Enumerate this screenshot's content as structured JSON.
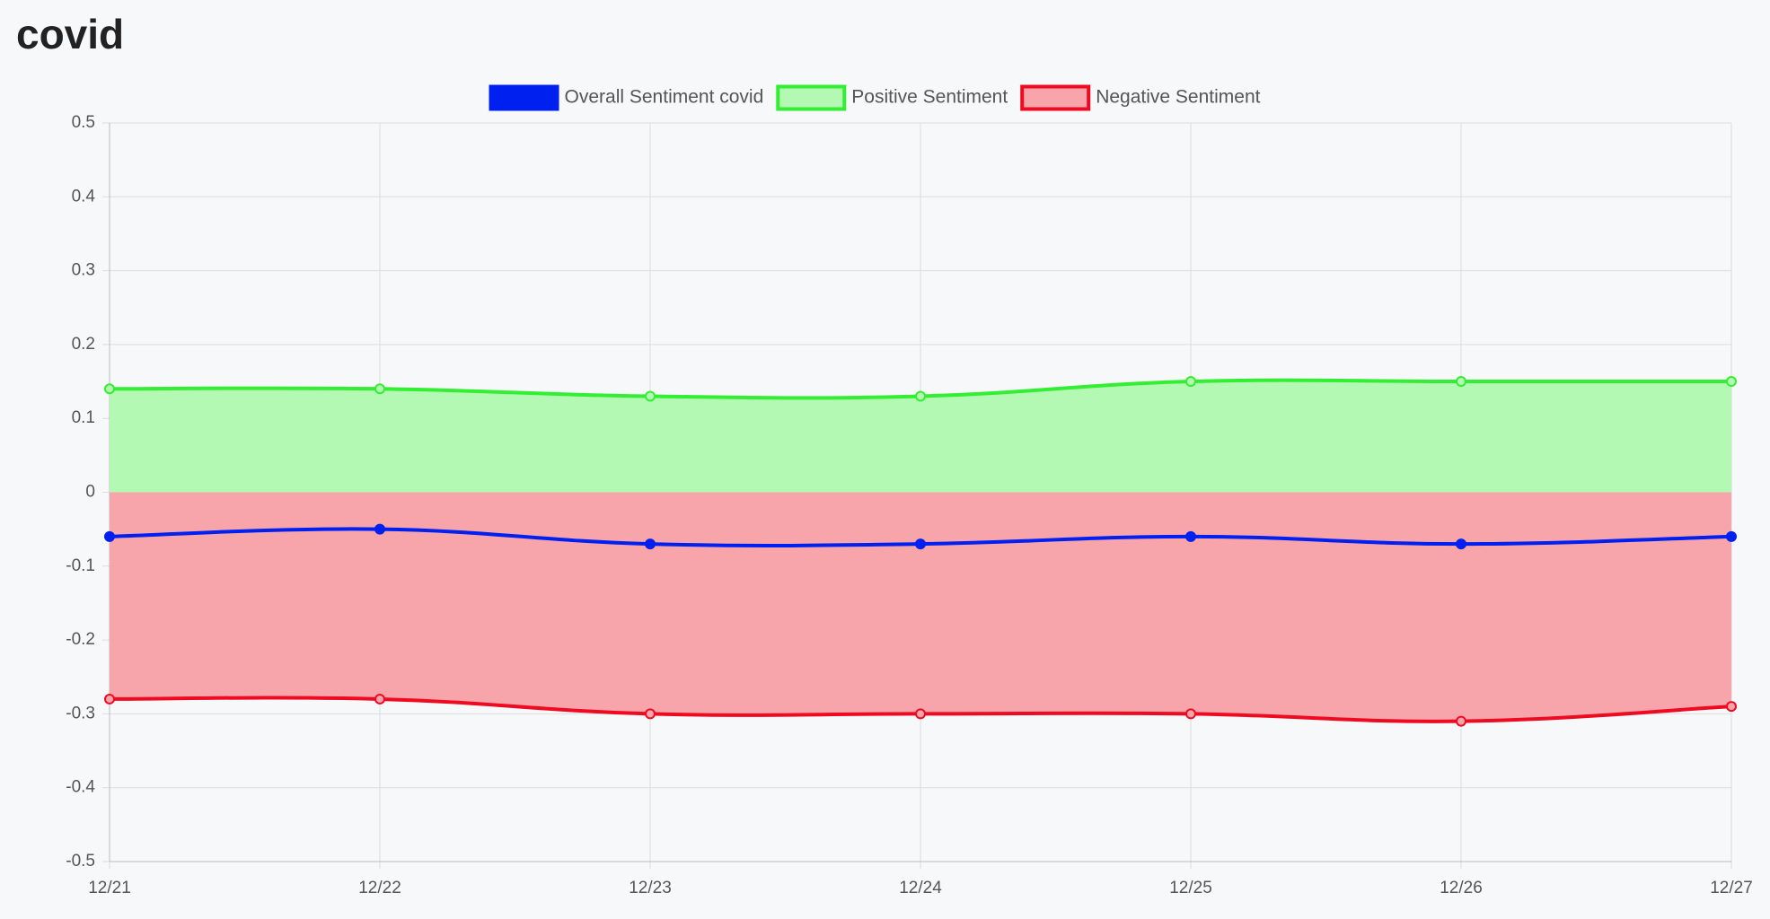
{
  "chart_data": {
    "type": "line",
    "title": "covid",
    "categories": [
      "12/21",
      "12/22",
      "12/23",
      "12/24",
      "12/25",
      "12/26",
      "12/27"
    ],
    "series": [
      {
        "name": "Overall Sentiment covid",
        "color": "#0020f0",
        "fill": "none",
        "values": [
          -0.06,
          -0.05,
          -0.07,
          -0.07,
          -0.06,
          -0.07,
          -0.06
        ]
      },
      {
        "name": "Positive Sentiment",
        "color": "#33ee33",
        "fill": "#b3f8b3",
        "values": [
          0.14,
          0.14,
          0.13,
          0.13,
          0.15,
          0.15,
          0.15
        ]
      },
      {
        "name": "Negative Sentiment",
        "color": "#ee0b22",
        "fill": "#f7a5ab",
        "values": [
          -0.28,
          -0.28,
          -0.3,
          -0.3,
          -0.3,
          -0.31,
          -0.29
        ]
      }
    ],
    "ylim": [
      -0.5,
      0.5
    ],
    "yticks": [
      0.5,
      0.4,
      0.3,
      0.2,
      0.1,
      0,
      -0.1,
      -0.2,
      -0.3,
      -0.4,
      -0.5
    ],
    "grid": true
  }
}
